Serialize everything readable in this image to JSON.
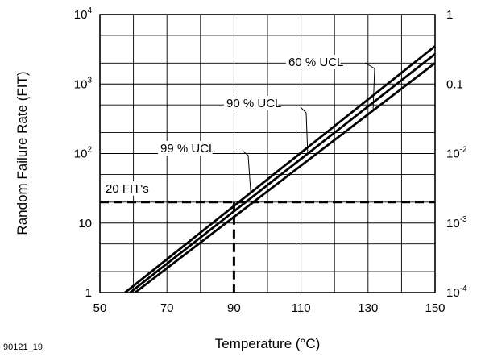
{
  "figure_id": "90121_19",
  "chart_data": {
    "type": "line",
    "xlabel": "Temperature (°C)",
    "ylabel": "Random Failure Rate (FIT)",
    "xlim": [
      50,
      150
    ],
    "ylim": [
      1,
      10000
    ],
    "y_scale": "log",
    "y2lim": [
      0.0001,
      1
    ],
    "y2_scale": "log",
    "grid": true,
    "x_ticks": [
      "50",
      "70",
      "90",
      "110",
      "130",
      "150"
    ],
    "x_tick_values": [
      50,
      70,
      90,
      110,
      130,
      150
    ],
    "y_ticks": [
      {
        "base": "10",
        "exp": "4",
        "value": 10000
      },
      {
        "base": "10",
        "exp": "3",
        "value": 1000
      },
      {
        "base": "10",
        "exp": "2",
        "value": 100
      },
      {
        "base": "10",
        "exp": "",
        "value": 10
      },
      {
        "base": "1",
        "exp": "",
        "value": 1
      }
    ],
    "y2_ticks": [
      {
        "base": "1",
        "exp": "",
        "value": 1
      },
      {
        "base": "0.1",
        "exp": "",
        "value": 0.1
      },
      {
        "base": "10",
        "exp": "-2",
        "value": 0.01
      },
      {
        "base": "10",
        "exp": "-3",
        "value": 0.001
      },
      {
        "base": "10",
        "exp": "-4",
        "value": 0.0001
      }
    ],
    "series": [
      {
        "name": "60 % UCL",
        "x": [
          60.5,
          150
        ],
        "y": [
          1,
          2000
        ]
      },
      {
        "name": "90 % UCL",
        "x": [
          59,
          150
        ],
        "y": [
          1,
          2700
        ]
      },
      {
        "name": "99 % UCL",
        "x": [
          57.5,
          150
        ],
        "y": [
          1,
          3500
        ]
      }
    ],
    "reference": {
      "label": "20 FIT's",
      "y": 20,
      "x": 90
    },
    "annotations": [
      {
        "text": "60 % UCL",
        "series": 0
      },
      {
        "text": "90 % UCL",
        "series": 1
      },
      {
        "text": "99 % UCL",
        "series": 2
      }
    ]
  }
}
